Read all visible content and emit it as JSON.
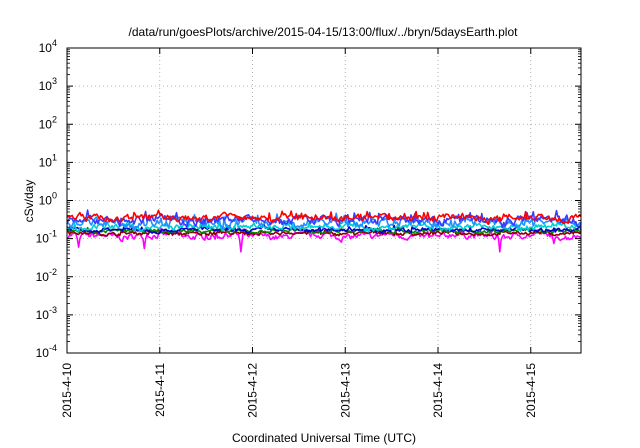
{
  "chart_data": {
    "type": "line",
    "title": "/data/run/goesPlots/archive/2015-04-15/13:00/flux/../bryn/5daysEarth.plot",
    "xlabel": "Coordinated Universal Time (UTC)",
    "ylabel": "cSv/day",
    "y_scale": "log",
    "ylim": [
      0.0001,
      10000
    ],
    "y_ticks": [
      {
        "value": 0.0001,
        "base": "10",
        "exp": "-4"
      },
      {
        "value": 0.001,
        "base": "10",
        "exp": "-3"
      },
      {
        "value": 0.01,
        "base": "10",
        "exp": "-2"
      },
      {
        "value": 0.1,
        "base": "10",
        "exp": "-1"
      },
      {
        "value": 1,
        "base": "10",
        "exp": "0"
      },
      {
        "value": 10,
        "base": "10",
        "exp": "1"
      },
      {
        "value": 100,
        "base": "10",
        "exp": "2"
      },
      {
        "value": 1000,
        "base": "10",
        "exp": "3"
      },
      {
        "value": 10000,
        "base": "10",
        "exp": "4"
      }
    ],
    "xlim": [
      "2015-04-10T00:00",
      "2015-04-15T13:00"
    ],
    "x_ticks": [
      "2015-4-10",
      "2015-4-11",
      "2015-4-12",
      "2015-4-13",
      "2015-4-14",
      "2015-4-15"
    ],
    "grid": true,
    "series": [
      {
        "color": "#ff00ff",
        "base": 0.118,
        "jitter": 0.09,
        "dips": [
          [
            "2015-04-10T03:00",
            0.06
          ],
          [
            "2015-04-10T20:00",
            0.055
          ],
          [
            "2015-04-11T21:00",
            0.045
          ],
          [
            "2015-04-14T16:00",
            0.045
          ],
          [
            "2015-04-15T06:00",
            0.075
          ]
        ]
      },
      {
        "color": "#8b0000",
        "base": 0.138,
        "jitter": 0.05,
        "dips": []
      },
      {
        "color": "#008b00",
        "base": 0.158,
        "jitter": 0.05,
        "dips": []
      },
      {
        "color": "#0000cd",
        "base": 0.17,
        "jitter": 0.06,
        "dips": []
      },
      {
        "color": "#00ced1",
        "base": 0.2,
        "jitter": 0.08,
        "dips": []
      },
      {
        "color": "#1e90ff",
        "base": 0.27,
        "jitter": 0.12,
        "dips": []
      },
      {
        "color": "#3a3aff",
        "base": 0.31,
        "jitter": 0.13,
        "dips": []
      },
      {
        "color": "#ff0000",
        "base": 0.36,
        "jitter": 0.1,
        "dips": []
      }
    ]
  }
}
